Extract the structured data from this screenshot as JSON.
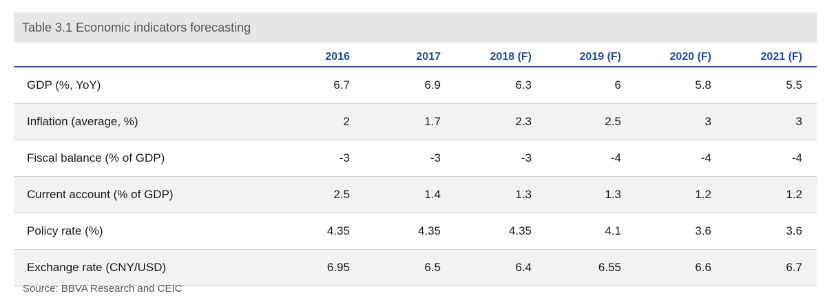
{
  "title": "Table 3.1 Economic  indicators forecasting",
  "columns": [
    "2016",
    "2017",
    "2018 (F)",
    "2019 (F)",
    "2020 (F)",
    "2021 (F)"
  ],
  "rows": [
    {
      "label": "GDP (%, YoY)",
      "values": [
        "6.7",
        "6.9",
        "6.3",
        "6",
        "5.8",
        "5.5"
      ]
    },
    {
      "label": "Inflation (average, %)",
      "values": [
        "2",
        "1.7",
        "2.3",
        "2.5",
        "3",
        "3"
      ]
    },
    {
      "label": "Fiscal balance (% of GDP)",
      "values": [
        "-3",
        "-3",
        "-3",
        "-4",
        "-4",
        "-4"
      ]
    },
    {
      "label": "Current account (% of GDP)",
      "values": [
        "2.5",
        "1.4",
        "1.3",
        "1.3",
        "1.2",
        "1.2"
      ]
    },
    {
      "label": "Policy rate (%)",
      "values": [
        "4.35",
        "4.35",
        "4.35",
        "4.1",
        "3.6",
        "3.6"
      ]
    },
    {
      "label": "Exchange rate (CNY/USD)",
      "values": [
        "6.95",
        "6.5",
        "6.4",
        "6.55",
        "6.6",
        "6.7"
      ]
    }
  ],
  "source": "Source: BBVA Research and CEIC"
}
